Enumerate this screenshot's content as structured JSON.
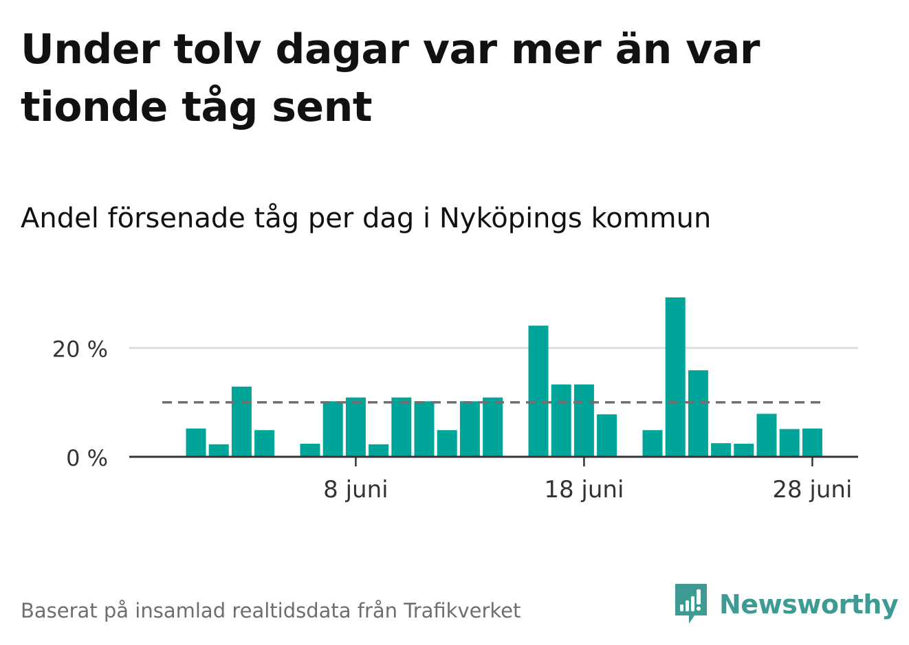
{
  "title": "Under tolv dagar var mer än var tionde tåg sent",
  "subtitle": "Andel försenade tåg per dag i Nyköpings kommun",
  "footer": {
    "source": "Baserat på insamlad realtidsdata från Trafikverket",
    "brand": "Newsworthy"
  },
  "colors": {
    "bar": "#00a499",
    "reference_line": "#707070",
    "grid": "#dddddd",
    "axis": "#333333",
    "brand": "#3d9b94"
  },
  "chart_data": {
    "type": "bar",
    "x": [
      "1 juni",
      "2 juni",
      "3 juni",
      "4 juni",
      "5 juni",
      "6 juni",
      "7 juni",
      "8 juni",
      "9 juni",
      "10 juni",
      "11 juni",
      "12 juni",
      "13 juni",
      "14 juni",
      "15 juni",
      "16 juni",
      "17 juni",
      "18 juni",
      "19 juni",
      "20 juni",
      "21 juni",
      "22 juni",
      "23 juni",
      "24 juni",
      "25 juni",
      "26 juni",
      "27 juni",
      "28 juni",
      "29 juni"
    ],
    "values": [
      5.2,
      2.3,
      12.9,
      4.9,
      null,
      2.4,
      10.2,
      10.9,
      2.3,
      10.9,
      10.2,
      4.9,
      10.2,
      10.9,
      null,
      24.1,
      13.3,
      13.3,
      7.8,
      null,
      4.9,
      29.3,
      15.9,
      2.5,
      2.4,
      7.9,
      5.1,
      5.2,
      null
    ],
    "reference_line": {
      "value": 10,
      "style": "dashed"
    },
    "x_ticks": [
      "8 juni",
      "18 juni",
      "28 juni"
    ],
    "y_ticks": [
      {
        "value": 0,
        "label": "0 %"
      },
      {
        "value": 20,
        "label": "20 %"
      }
    ],
    "ylim": [
      0,
      30
    ],
    "ylabel": "",
    "xlabel": "",
    "unit": "%",
    "grid": true,
    "legend": false
  }
}
